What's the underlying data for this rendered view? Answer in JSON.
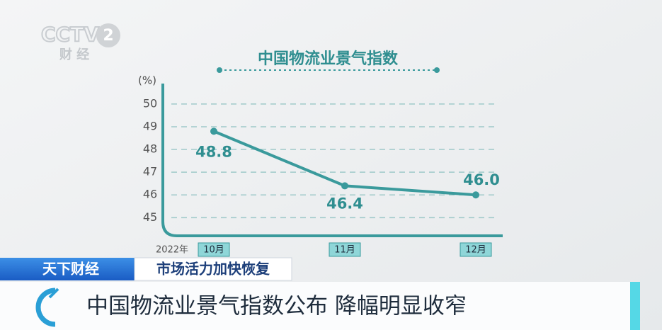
{
  "logo": {
    "channel": "CCTV",
    "number": "2",
    "name": "财 经"
  },
  "chart_data": {
    "type": "line",
    "title": "中国物流业景气指数",
    "y_label": "(%)",
    "year_label": "2022年",
    "categories": [
      "10月",
      "11月",
      "12月"
    ],
    "series": [
      {
        "color": "#3a9a9c",
        "values": [
          48.8,
          46.4,
          46.0
        ],
        "value_labels": [
          "48.8",
          "46.4",
          "46.0"
        ]
      }
    ],
    "ylim": [
      44.2,
      50.9
    ],
    "yticks": [
      45,
      46,
      47,
      48,
      49,
      50
    ],
    "grid": true
  },
  "ticker": {
    "program": "天下财经",
    "topic": "市场活力加快恢复",
    "headline": "中国物流业景气指数公布 降幅明显收窄"
  }
}
